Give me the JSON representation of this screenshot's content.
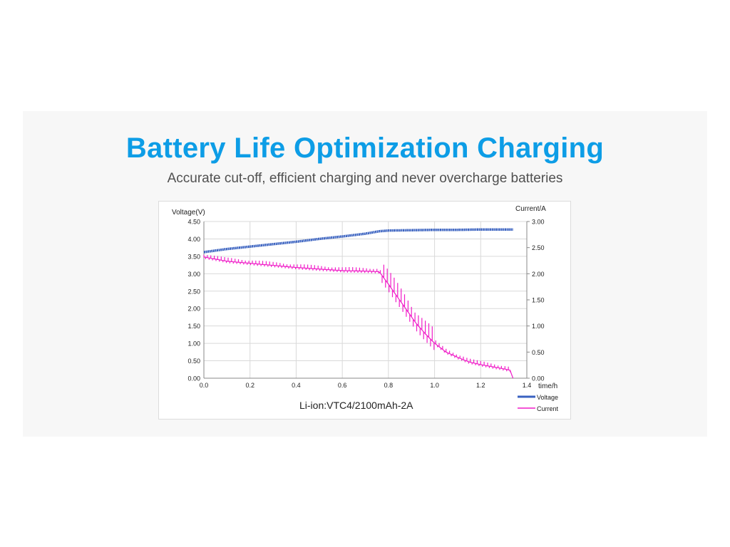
{
  "header": {
    "title": "Battery Life Optimization Charging",
    "subtitle": "Accurate cut-off, efficient charging and never overcharge batteries"
  },
  "chart_data": {
    "type": "line",
    "title": "Li-ion:VTC4/2100mAh-2A",
    "xlabel": "time/h",
    "ylabel": "Voltage(V)",
    "y2label": "Current/A",
    "xlim": [
      0,
      1.4
    ],
    "ylim": [
      0,
      4.5
    ],
    "y2lim": [
      0,
      3.0
    ],
    "xticks": [
      "0.0",
      "0.2",
      "0.4",
      "0.6",
      "0.8",
      "1.0",
      "1.2",
      "1.4"
    ],
    "yticks": [
      "0.00",
      "0.50",
      "1.00",
      "1.50",
      "2.00",
      "2.50",
      "3.00",
      "3.50",
      "4.00",
      "4.50"
    ],
    "y2ticks": [
      "0.00",
      "0.50",
      "1.00",
      "1.50",
      "2.00",
      "2.50",
      "3.00"
    ],
    "grid": true,
    "legend_position": "bottom-right",
    "series": [
      {
        "name": "Voltage",
        "axis": "left",
        "color": "#3a62c0",
        "x": [
          0,
          0.1,
          0.2,
          0.3,
          0.4,
          0.5,
          0.6,
          0.7,
          0.76,
          0.8,
          0.9,
          1.0,
          1.1,
          1.2,
          1.34
        ],
        "y": [
          3.62,
          3.71,
          3.78,
          3.85,
          3.92,
          4.0,
          4.07,
          4.15,
          4.22,
          4.24,
          4.25,
          4.26,
          4.26,
          4.27,
          4.27
        ]
      },
      {
        "name": "Current",
        "axis": "right",
        "color": "#f01dc8",
        "x": [
          0,
          0.1,
          0.2,
          0.3,
          0.4,
          0.5,
          0.6,
          0.7,
          0.76,
          0.8,
          0.84,
          0.88,
          0.92,
          0.96,
          1.0,
          1.05,
          1.1,
          1.15,
          1.2,
          1.25,
          1.3,
          1.33,
          1.34
        ],
        "y": [
          2.32,
          2.24,
          2.2,
          2.16,
          2.12,
          2.09,
          2.06,
          2.05,
          2.04,
          1.8,
          1.55,
          1.3,
          1.05,
          0.85,
          0.67,
          0.5,
          0.4,
          0.31,
          0.26,
          0.22,
          0.18,
          0.15,
          0.0
        ]
      }
    ]
  }
}
